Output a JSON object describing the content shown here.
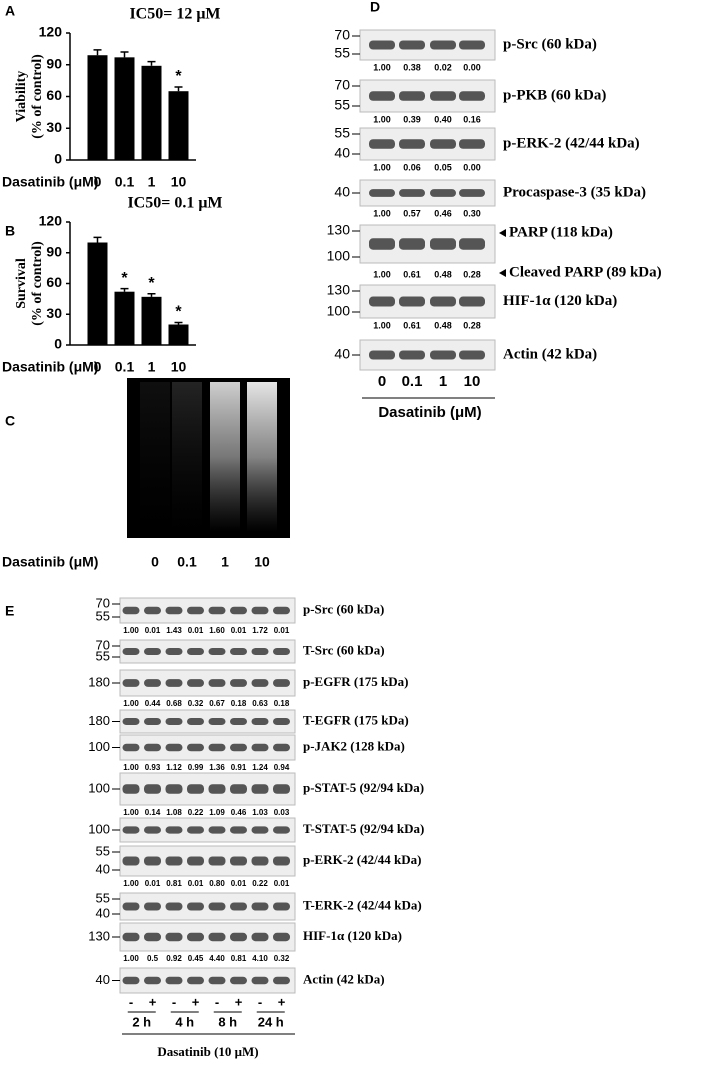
{
  "chart_data": [
    {
      "type": "bar",
      "panel_label": "A",
      "title": "IC50= 12 μM",
      "ylabel": [
        "Viability",
        "(% of control)"
      ],
      "xlabel": "Dasatinib (μM)",
      "categories": [
        "0",
        "0.1",
        "1",
        "10"
      ],
      "values": [
        99,
        97,
        89,
        65
      ],
      "errors": [
        5,
        5,
        4,
        4
      ],
      "annotations": [
        null,
        null,
        null,
        "*"
      ],
      "ylim": [
        0,
        120
      ],
      "yticks": [
        0,
        30,
        60,
        90,
        120
      ],
      "color": "#000000"
    },
    {
      "type": "bar",
      "panel_label": "B",
      "title": "IC50= 0.1 μM",
      "ylabel": [
        "Survival",
        "(% of control)"
      ],
      "xlabel": "Dasatinib (μM)",
      "categories": [
        "0",
        "0.1",
        "1",
        "10"
      ],
      "values": [
        100,
        52,
        47,
        20
      ],
      "errors": [
        5,
        3,
        3,
        2
      ],
      "annotations": [
        null,
        "*",
        "*",
        "*"
      ],
      "ylim": [
        0,
        120
      ],
      "yticks": [
        0,
        30,
        60,
        90,
        120
      ],
      "color": "#000000"
    }
  ],
  "panel_c": {
    "label": "C",
    "lanes": [
      "0",
      "0.1",
      "1",
      "10"
    ],
    "xlabel": "Dasatinib (μM)"
  },
  "panel_d": {
    "label": "D",
    "lanes": [
      "0",
      "0.1",
      "1",
      "10"
    ],
    "xlabel": "Dasatinib (μM)",
    "blots": [
      {
        "names": [
          "p-Src (60 kDa)"
        ],
        "markers": [
          70,
          55
        ],
        "quant": [
          "1.00",
          "0.38",
          "0.02",
          "0.00"
        ]
      },
      {
        "names": [
          "p-PKB (60 kDa)"
        ],
        "markers": [
          70,
          55
        ],
        "quant": [
          "1.00",
          "0.39",
          "0.40",
          "0.16"
        ]
      },
      {
        "names": [
          "p-ERK-2  (42/44 kDa)"
        ],
        "markers": [
          55,
          40
        ],
        "quant": [
          "1.00",
          "0.06",
          "0.05",
          "0.00"
        ]
      },
      {
        "names": [
          "Procaspase-3  (35 kDa)"
        ],
        "markers": [
          40
        ],
        "quant": [
          "1.00",
          "0.57",
          "0.46",
          "0.30"
        ]
      },
      {
        "names": [
          "PARP (118 kDa)",
          "Cleaved PARP (89 kDa)"
        ],
        "markers": [
          130,
          100
        ],
        "quant": [
          "1.00",
          "0.61",
          "0.48",
          "0.28"
        ]
      },
      {
        "names": [
          "HIF-1α (120 kDa)"
        ],
        "markers": [
          130,
          100
        ],
        "quant": [
          "1.00",
          "0.61",
          "0.48",
          "0.28"
        ]
      },
      {
        "names": [
          "Actin (42 kDa)"
        ],
        "markers": [
          40
        ],
        "quant": []
      }
    ]
  },
  "panel_e": {
    "label": "E",
    "treatment": [
      "-",
      "+",
      "-",
      "+",
      "-",
      "+",
      "-",
      "+"
    ],
    "times": [
      "2 h",
      "4 h",
      "8 h",
      "24 h"
    ],
    "xlabel": "Dasatinib (10 μM)",
    "blots": [
      {
        "names": [
          "p-Src (60 kDa)"
        ],
        "markers": [
          70,
          55
        ],
        "quant": [
          "1.00",
          "0.01",
          "1.43",
          "0.01",
          "1.60",
          "0.01",
          "1.72",
          "0.01"
        ]
      },
      {
        "names": [
          "T-Src (60 kDa)"
        ],
        "markers": [
          70,
          55
        ],
        "quant": []
      },
      {
        "names": [
          "p-EGFR (175 kDa)"
        ],
        "markers": [
          180
        ],
        "quant": [
          "1.00",
          "0.44",
          "0.68",
          "0.32",
          "0.67",
          "0.18",
          "0.63",
          "0.18"
        ]
      },
      {
        "names": [
          "T-EGFR (175 kDa)"
        ],
        "markers": [
          180
        ],
        "quant": []
      },
      {
        "names": [
          "p-JAK2 (128 kDa)"
        ],
        "markers": [
          100
        ],
        "quant": [
          "1.00",
          "0.93",
          "1.12",
          "0.99",
          "1.36",
          "0.91",
          "1.24",
          "0.94"
        ]
      },
      {
        "names": [
          "p-STAT-5 (92/94 kDa)"
        ],
        "markers": [
          100
        ],
        "quant": [
          "1.00",
          "0.14",
          "1.08",
          "0.22",
          "1.09",
          "0.46",
          "1.03",
          "0.03"
        ]
      },
      {
        "names": [
          "T-STAT-5 (92/94 kDa)"
        ],
        "markers": [
          100
        ],
        "quant": []
      },
      {
        "names": [
          "p-ERK-2 (42/44 kDa)"
        ],
        "markers": [
          55,
          40
        ],
        "quant": [
          "1.00",
          "0.01",
          "0.81",
          "0.01",
          "0.80",
          "0.01",
          "0.22",
          "0.01"
        ]
      },
      {
        "names": [
          "T-ERK-2 (42/44 kDa)"
        ],
        "markers": [
          55,
          40
        ],
        "quant": []
      },
      {
        "names": [
          "HIF-1α (120 kDa)"
        ],
        "markers": [
          130
        ],
        "quant": [
          "1.00",
          "0.5",
          "0.92",
          "0.45",
          "4.40",
          "0.81",
          "4.10",
          "0.32"
        ]
      },
      {
        "names": [
          "Actin (42 kDa)"
        ],
        "markers": [
          40
        ],
        "quant": []
      }
    ]
  }
}
